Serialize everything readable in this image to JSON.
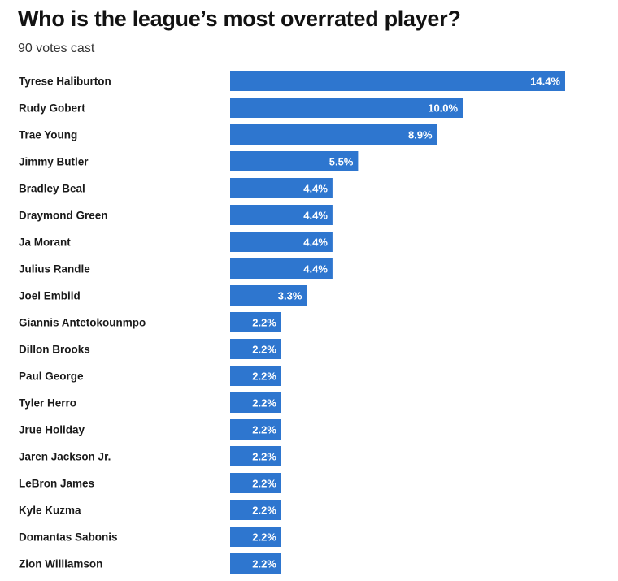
{
  "header": {
    "title": "Who is the league’s most overrated player?",
    "subtitle": "90 votes cast"
  },
  "colors": {
    "bar": "#2e76cf",
    "label_text": "#1a1a1a",
    "value_text": "#ffffff"
  },
  "chart_data": {
    "type": "bar",
    "orientation": "horizontal",
    "title": "Who is the league’s most overrated player?",
    "subtitle": "90 votes cast",
    "xlabel": "",
    "ylabel": "",
    "grid": false,
    "value_suffix": "%",
    "xlim": [
      0,
      14.4
    ],
    "categories": [
      "Tyrese Haliburton",
      "Rudy Gobert",
      "Trae Young",
      "Jimmy Butler",
      "Bradley Beal",
      "Draymond Green",
      "Ja Morant",
      "Julius Randle",
      "Joel Embiid",
      "Giannis Antetokounmpo",
      "Dillon Brooks",
      "Paul George",
      "Tyler Herro",
      "Jrue Holiday",
      "Jaren Jackson Jr.",
      "LeBron James",
      "Kyle Kuzma",
      "Domantas Sabonis",
      "Zion Williamson"
    ],
    "values": [
      14.4,
      10.0,
      8.9,
      5.5,
      4.4,
      4.4,
      4.4,
      4.4,
      3.3,
      2.2,
      2.2,
      2.2,
      2.2,
      2.2,
      2.2,
      2.2,
      2.2,
      2.2,
      2.2
    ],
    "value_labels": [
      "14.4%",
      "10.0%",
      "8.9%",
      "5.5%",
      "4.4%",
      "4.4%",
      "4.4%",
      "4.4%",
      "3.3%",
      "2.2%",
      "2.2%",
      "2.2%",
      "2.2%",
      "2.2%",
      "2.2%",
      "2.2%",
      "2.2%",
      "2.2%",
      "2.2%"
    ]
  }
}
